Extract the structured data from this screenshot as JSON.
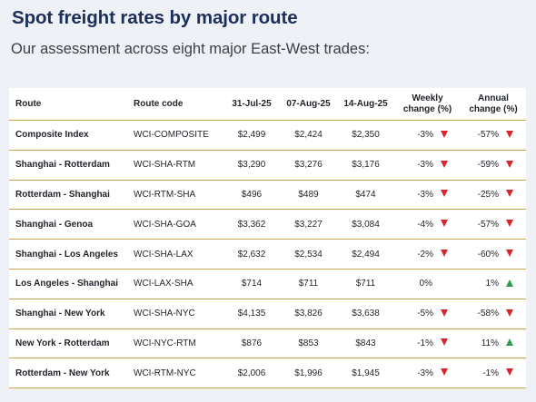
{
  "header": {
    "title": "Spot freight rates by major route",
    "subtitle": "Our assessment across eight major East-West trades:"
  },
  "table": {
    "columns": {
      "route": "Route",
      "code": "Route code",
      "d1": "31-Jul-25",
      "d2": "07-Aug-25",
      "d3": "14-Aug-25",
      "weekly_line1": "Weekly",
      "weekly_line2": "change (%)",
      "annual_line1": "Annual",
      "annual_line2": "change (%)"
    },
    "rows": [
      {
        "route": "Composite Index",
        "code": "WCI-COMPOSITE",
        "d1": "$2,499",
        "d2": "$2,424",
        "d3": "$2,350",
        "weekly": "-3%",
        "weekly_dir": "down",
        "annual": "-57%",
        "annual_dir": "down"
      },
      {
        "route": "Shanghai - Rotterdam",
        "code": "WCI-SHA-RTM",
        "d1": "$3,290",
        "d2": "$3,276",
        "d3": "$3,176",
        "weekly": "-3%",
        "weekly_dir": "down",
        "annual": "-59%",
        "annual_dir": "down"
      },
      {
        "route": "Rotterdam - Shanghai",
        "code": "WCI-RTM-SHA",
        "d1": "$496",
        "d2": "$489",
        "d3": "$474",
        "weekly": "-3%",
        "weekly_dir": "down",
        "annual": "-25%",
        "annual_dir": "down"
      },
      {
        "route": "Shanghai - Genoa",
        "code": "WCI-SHA-GOA",
        "d1": "$3,362",
        "d2": "$3,227",
        "d3": "$3,084",
        "weekly": "-4%",
        "weekly_dir": "down",
        "annual": "-57%",
        "annual_dir": "down"
      },
      {
        "route": "Shanghai - Los Angeles",
        "code": "WCI-SHA-LAX",
        "d1": "$2,632",
        "d2": "$2,534",
        "d3": "$2,494",
        "weekly": "-2%",
        "weekly_dir": "down",
        "annual": "-60%",
        "annual_dir": "down"
      },
      {
        "route": "Los Angeles - Shanghai",
        "code": "WCI-LAX-SHA",
        "d1": "$714",
        "d2": "$711",
        "d3": "$711",
        "weekly": "0%",
        "weekly_dir": "none",
        "annual": "1%",
        "annual_dir": "up"
      },
      {
        "route": "Shanghai - New York",
        "code": "WCI-SHA-NYC",
        "d1": "$4,135",
        "d2": "$3,826",
        "d3": "$3,638",
        "weekly": "-5%",
        "weekly_dir": "down",
        "annual": "-58%",
        "annual_dir": "down"
      },
      {
        "route": "New York - Rotterdam",
        "code": "WCI-NYC-RTM",
        "d1": "$876",
        "d2": "$853",
        "d3": "$843",
        "weekly": "-1%",
        "weekly_dir": "down",
        "annual": "11%",
        "annual_dir": "up"
      },
      {
        "route": "Rotterdam - New York",
        "code": "WCI-RTM-NYC",
        "d1": "$2,006",
        "d2": "$1,996",
        "d3": "$1,945",
        "weekly": "-3%",
        "weekly_dir": "down",
        "annual": "-1%",
        "annual_dir": "down"
      }
    ]
  },
  "colors": {
    "title": "#1c2f5a",
    "rule": "#c7a55a",
    "down": "#d6262b",
    "up": "#2e9b4e"
  }
}
